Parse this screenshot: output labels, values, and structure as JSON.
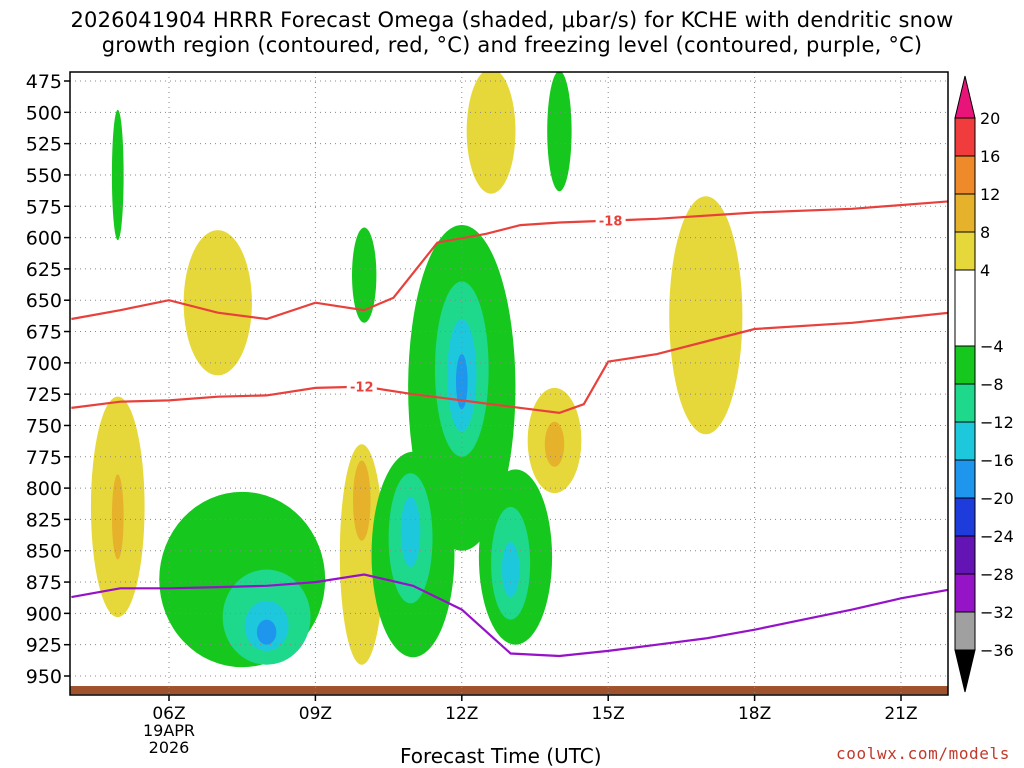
{
  "title": {
    "line1": "2026041904 HRRR Forecast Omega (shaded, μbar/s) for KCHE with dendritic snow",
    "line2": "growth region (contoured, red, °C) and freezing level (contoured, purple, °C)"
  },
  "credit": "coolwx.com/models",
  "chart_data": {
    "type": "heatmap",
    "title": "2026041904 HRRR Forecast Omega (shaded, μbar/s) for KCHE with dendritic snow growth region (contoured, red, °C) and freezing level (contoured, purple, °C)",
    "xlabel": "Forecast Time (UTC)",
    "ylabel": "",
    "x_ticks": [
      {
        "hour": 6,
        "label": "06Z",
        "sub": [
          "19APR",
          "2026"
        ]
      },
      {
        "hour": 9,
        "label": "09Z"
      },
      {
        "hour": 12,
        "label": "12Z"
      },
      {
        "hour": 15,
        "label": "15Z"
      },
      {
        "hour": 18,
        "label": "18Z"
      },
      {
        "hour": 21,
        "label": "21Z"
      }
    ],
    "xlim": [
      4,
      22
    ],
    "y_ticks": [
      475,
      500,
      525,
      550,
      575,
      600,
      625,
      650,
      675,
      700,
      725,
      750,
      775,
      800,
      825,
      850,
      875,
      900,
      925,
      950
    ],
    "ylim": [
      960,
      470
    ],
    "grid": true,
    "colorbar": {
      "labels": [
        "20",
        "16",
        "12",
        "8",
        "4",
        "−4",
        "−8",
        "−12",
        "−16",
        "−20",
        "−24",
        "−28",
        "−32",
        "−36"
      ],
      "bands": [
        {
          "from": 16,
          "to": 20,
          "color": "#f03c3c"
        },
        {
          "from": 12,
          "to": 16,
          "color": "#ee8a2a"
        },
        {
          "from": 8,
          "to": 12,
          "color": "#e6b22c"
        },
        {
          "from": 4,
          "to": 8,
          "color": "#e6d83a"
        },
        {
          "from": -4,
          "to": 4,
          "color": "#ffffff"
        },
        {
          "from": -8,
          "to": -4,
          "color": "#16c81e"
        },
        {
          "from": -12,
          "to": -8,
          "color": "#1ed88c"
        },
        {
          "from": -16,
          "to": -12,
          "color": "#1ec8dc"
        },
        {
          "from": -20,
          "to": -16,
          "color": "#1e96ee"
        },
        {
          "from": -24,
          "to": -20,
          "color": "#1e3cdc"
        },
        {
          "from": -28,
          "to": -24,
          "color": "#6414b4"
        },
        {
          "from": -32,
          "to": -28,
          "color": "#9614c8"
        },
        {
          "from": -36,
          "to": -32,
          "color": "#a0a0a0"
        }
      ],
      "top_arrow_color": "#e8147a",
      "bottom_arrow_color": "#000000"
    },
    "omega_regions": [
      {
        "band": "4 to 8",
        "color": "#e6d83a",
        "hour": 4.95,
        "pressure": 815,
        "hw": 0.55,
        "hh": 88
      },
      {
        "band": "8 to 12",
        "color": "#e6b22c",
        "hour": 4.95,
        "pressure": 823,
        "hw": 0.12,
        "hh": 34
      },
      {
        "band": "-8 to -4",
        "color": "#16c81e",
        "hour": 4.95,
        "pressure": 550,
        "hw": 0.12,
        "hh": 52
      },
      {
        "band": "4 to 8",
        "color": "#e6d83a",
        "hour": 7.0,
        "pressure": 652,
        "hw": 0.7,
        "hh": 58
      },
      {
        "band": "-8 to -4",
        "color": "#16c81e",
        "hour": 7.5,
        "pressure": 873,
        "hw": 1.7,
        "hh": 70
      },
      {
        "band": "-12 to -8",
        "color": "#1ed88c",
        "hour": 8.0,
        "pressure": 903,
        "hw": 0.9,
        "hh": 38
      },
      {
        "band": "-16 to -12",
        "color": "#1ec8dc",
        "hour": 8.0,
        "pressure": 910,
        "hw": 0.45,
        "hh": 20
      },
      {
        "band": "-20 to -16",
        "color": "#1e96ee",
        "hour": 8.0,
        "pressure": 915,
        "hw": 0.2,
        "hh": 10
      },
      {
        "band": "-8 to -4",
        "color": "#16c81e",
        "hour": 10.0,
        "pressure": 630,
        "hw": 0.25,
        "hh": 38
      },
      {
        "band": "4 to 8",
        "color": "#e6d83a",
        "hour": 9.95,
        "pressure": 853,
        "hw": 0.45,
        "hh": 88
      },
      {
        "band": "8 to 12",
        "color": "#e6b22c",
        "hour": 9.95,
        "pressure": 810,
        "hw": 0.18,
        "hh": 32
      },
      {
        "band": "-8 to -4",
        "color": "#16c81e",
        "hour": 12.0,
        "pressure": 720,
        "hw": 1.1,
        "hh": 130
      },
      {
        "band": "-12 to -8",
        "color": "#1ed88c",
        "hour": 12.0,
        "pressure": 705,
        "hw": 0.55,
        "hh": 70
      },
      {
        "band": "-16 to -12",
        "color": "#1ec8dc",
        "hour": 12.0,
        "pressure": 710,
        "hw": 0.3,
        "hh": 45
      },
      {
        "band": "-20 to -16",
        "color": "#1e96ee",
        "hour": 12.0,
        "pressure": 715,
        "hw": 0.12,
        "hh": 22
      },
      {
        "band": "-8 to -4",
        "color": "#16c81e",
        "hour": 11.0,
        "pressure": 853,
        "hw": 0.85,
        "hh": 82
      },
      {
        "band": "-12 to -8",
        "color": "#1ed88c",
        "hour": 10.95,
        "pressure": 840,
        "hw": 0.45,
        "hh": 52
      },
      {
        "band": "-16 to -12",
        "color": "#1ec8dc",
        "hour": 10.95,
        "pressure": 835,
        "hw": 0.2,
        "hh": 28
      },
      {
        "band": "-8 to -4",
        "color": "#16c81e",
        "hour": 13.1,
        "pressure": 855,
        "hw": 0.75,
        "hh": 70
      },
      {
        "band": "-12 to -8",
        "color": "#1ed88c",
        "hour": 13.0,
        "pressure": 860,
        "hw": 0.4,
        "hh": 45
      },
      {
        "band": "-16 to -12",
        "color": "#1ec8dc",
        "hour": 13.0,
        "pressure": 865,
        "hw": 0.18,
        "hh": 22
      },
      {
        "band": "4 to 8",
        "color": "#e6d83a",
        "hour": 12.6,
        "pressure": 515,
        "hw": 0.5,
        "hh": 50
      },
      {
        "band": "-8 to -4",
        "color": "#16c81e",
        "hour": 14.0,
        "pressure": 515,
        "hw": 0.25,
        "hh": 48
      },
      {
        "band": "4 to 8",
        "color": "#e6d83a",
        "hour": 13.9,
        "pressure": 762,
        "hw": 0.55,
        "hh": 42
      },
      {
        "band": "8 to 12",
        "color": "#e6b22c",
        "hour": 13.9,
        "pressure": 765,
        "hw": 0.2,
        "hh": 18
      },
      {
        "band": "4 to 8",
        "color": "#e6d83a",
        "hour": 17.0,
        "pressure": 662,
        "hw": 0.75,
        "hh": 95
      }
    ],
    "red_contours": [
      {
        "label": "-18",
        "label_at": 15.05,
        "points": [
          [
            4,
            665
          ],
          [
            5,
            658
          ],
          [
            6,
            650
          ],
          [
            7,
            660
          ],
          [
            8,
            665
          ],
          [
            9,
            652
          ],
          [
            10,
            658
          ],
          [
            10.6,
            648
          ],
          [
            11.5,
            604
          ],
          [
            12.5,
            597
          ],
          [
            13.2,
            590
          ],
          [
            14,
            588
          ],
          [
            16,
            585
          ],
          [
            18,
            580
          ],
          [
            20,
            577
          ],
          [
            22,
            571
          ]
        ]
      },
      {
        "label": "-12",
        "label_at": 9.95,
        "points": [
          [
            4,
            736
          ],
          [
            5,
            731
          ],
          [
            6,
            730
          ],
          [
            7,
            727
          ],
          [
            8,
            726
          ],
          [
            9,
            720
          ],
          [
            10,
            719
          ],
          [
            11,
            725
          ],
          [
            12,
            730
          ],
          [
            13,
            735
          ],
          [
            14,
            740
          ],
          [
            14.5,
            733
          ],
          [
            15,
            699
          ],
          [
            16,
            693
          ],
          [
            17,
            683
          ],
          [
            18,
            673
          ],
          [
            20,
            668
          ],
          [
            22,
            660
          ]
        ]
      }
    ],
    "freezing_level": [
      [
        4,
        887
      ],
      [
        5,
        880
      ],
      [
        6,
        880
      ],
      [
        7,
        879
      ],
      [
        8,
        878
      ],
      [
        9,
        875
      ],
      [
        10,
        869
      ],
      [
        11,
        878
      ],
      [
        12,
        897
      ],
      [
        13,
        932
      ],
      [
        14,
        934
      ],
      [
        15,
        930
      ],
      [
        16,
        925
      ],
      [
        17,
        920
      ],
      [
        18,
        913
      ],
      [
        19,
        905
      ],
      [
        20,
        897
      ],
      [
        21,
        888
      ],
      [
        22,
        881
      ]
    ],
    "ground": {
      "color": "#a0522d",
      "top_pressure": 958,
      "bottom_pressure": 963
    }
  }
}
